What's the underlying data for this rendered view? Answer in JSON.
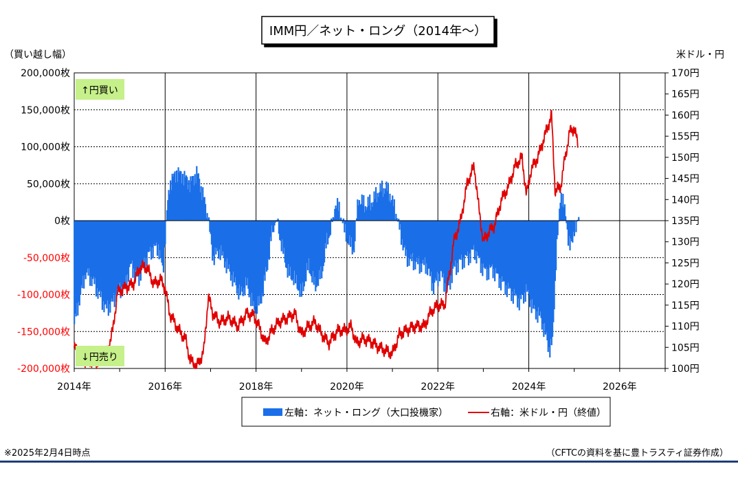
{
  "chart_data": {
    "type": "bar+line",
    "title": "IMM円／ネット・ロング（2014年～）",
    "ylabel_left": "（買い越し幅）",
    "ylabel_right": "米ドル・円",
    "left_axis": {
      "ylim": [
        -200000,
        200000
      ],
      "ticks": [
        200000,
        150000,
        100000,
        50000,
        0,
        -50000,
        -100000,
        -150000,
        -200000
      ],
      "tick_labels": [
        "200,000枚",
        "150,000枚",
        "100,000枚",
        "50,000枚",
        "0枚",
        "-50,000枚",
        "-100,000枚",
        "-150,000枚",
        "-200,000枚"
      ]
    },
    "right_axis": {
      "ylim": [
        100,
        170
      ],
      "tick_labels": [
        "170円",
        "165円",
        "160円",
        "155円",
        "150円",
        "145円",
        "140円",
        "135円",
        "130円",
        "125円",
        "120円",
        "115円",
        "110円",
        "105円",
        "100円"
      ]
    },
    "x_axis": {
      "range": [
        2014,
        2027
      ],
      "tick_labels": [
        "2014年",
        "2016年",
        "2018年",
        "2020年",
        "2022年",
        "2024年",
        "2026年"
      ]
    },
    "grid": true,
    "annotations": {
      "buy": "↑円買い",
      "sell": "↓円売り"
    },
    "legend": {
      "position": "bottom",
      "bar_label": "左軸：ネット・ロング（大口投機家）",
      "line_label": "右軸：米ドル・円（終値）"
    },
    "series": [
      {
        "name": "左軸：ネット・ロング（大口投機家）",
        "type": "bar",
        "color": "#1a6fe8",
        "points": [
          [
            2014.0,
            -140000
          ],
          [
            2014.1,
            -110000
          ],
          [
            2014.25,
            -70000
          ],
          [
            2014.4,
            -80000
          ],
          [
            2014.55,
            -100000
          ],
          [
            2014.7,
            -120000
          ],
          [
            2014.85,
            -110000
          ],
          [
            2014.95,
            -95000
          ],
          [
            2015.1,
            -90000
          ],
          [
            2015.25,
            -60000
          ],
          [
            2015.4,
            -80000
          ],
          [
            2015.55,
            -55000
          ],
          [
            2015.7,
            -40000
          ],
          [
            2015.85,
            -35000
          ],
          [
            2015.95,
            -70000
          ],
          [
            2016.02,
            0
          ],
          [
            2016.1,
            50000
          ],
          [
            2016.25,
            65000
          ],
          [
            2016.4,
            60000
          ],
          [
            2016.55,
            50000
          ],
          [
            2016.7,
            65000
          ],
          [
            2016.85,
            30000
          ],
          [
            2016.95,
            0
          ],
          [
            2017.05,
            -50000
          ],
          [
            2017.2,
            -40000
          ],
          [
            2017.35,
            -60000
          ],
          [
            2017.5,
            -80000
          ],
          [
            2017.65,
            -100000
          ],
          [
            2017.8,
            -85000
          ],
          [
            2017.95,
            -120000
          ],
          [
            2018.1,
            -110000
          ],
          [
            2018.25,
            -60000
          ],
          [
            2018.35,
            -15000
          ],
          [
            2018.45,
            2000
          ],
          [
            2018.55,
            -30000
          ],
          [
            2018.7,
            -70000
          ],
          [
            2018.85,
            -80000
          ],
          [
            2019.0,
            -100000
          ],
          [
            2019.15,
            -60000
          ],
          [
            2019.3,
            -90000
          ],
          [
            2019.45,
            -70000
          ],
          [
            2019.55,
            -30000
          ],
          [
            2019.65,
            -10000
          ],
          [
            2019.75,
            25000
          ],
          [
            2019.85,
            10000
          ],
          [
            2019.95,
            -15000
          ],
          [
            2020.05,
            -30000
          ],
          [
            2020.15,
            -40000
          ],
          [
            2020.25,
            30000
          ],
          [
            2020.4,
            20000
          ],
          [
            2020.55,
            25000
          ],
          [
            2020.7,
            40000
          ],
          [
            2020.85,
            45000
          ],
          [
            2020.95,
            35000
          ],
          [
            2021.05,
            15000
          ],
          [
            2021.15,
            -10000
          ],
          [
            2021.3,
            -50000
          ],
          [
            2021.45,
            -55000
          ],
          [
            2021.6,
            -60000
          ],
          [
            2021.75,
            -60000
          ],
          [
            2021.9,
            -90000
          ],
          [
            2022.05,
            -70000
          ],
          [
            2022.2,
            -95000
          ],
          [
            2022.35,
            -65000
          ],
          [
            2022.5,
            -55000
          ],
          [
            2022.65,
            -50000
          ],
          [
            2022.8,
            -40000
          ],
          [
            2022.95,
            -60000
          ],
          [
            2023.05,
            -70000
          ],
          [
            2023.2,
            -65000
          ],
          [
            2023.35,
            -80000
          ],
          [
            2023.5,
            -90000
          ],
          [
            2023.65,
            -100000
          ],
          [
            2023.8,
            -110000
          ],
          [
            2023.95,
            -95000
          ],
          [
            2024.1,
            -120000
          ],
          [
            2024.25,
            -130000
          ],
          [
            2024.35,
            -150000
          ],
          [
            2024.45,
            -175000
          ],
          [
            2024.52,
            -165000
          ],
          [
            2024.6,
            -50000
          ],
          [
            2024.7,
            40000
          ],
          [
            2024.8,
            10000
          ],
          [
            2024.9,
            -40000
          ],
          [
            2025.0,
            -10000
          ],
          [
            2025.05,
            -15000
          ],
          [
            2025.1,
            15000
          ]
        ]
      },
      {
        "name": "右軸：米ドル・円（終値）",
        "type": "line",
        "color": "#e00000",
        "points": [
          [
            2014.0,
            105
          ],
          [
            2014.2,
            102
          ],
          [
            2014.5,
            101.5
          ],
          [
            2014.7,
            103
          ],
          [
            2014.85,
            109
          ],
          [
            2014.95,
            118
          ],
          [
            2015.1,
            119
          ],
          [
            2015.3,
            120
          ],
          [
            2015.45,
            124
          ],
          [
            2015.6,
            124
          ],
          [
            2015.75,
            120
          ],
          [
            2015.9,
            121
          ],
          [
            2016.0,
            119
          ],
          [
            2016.1,
            113
          ],
          [
            2016.3,
            109
          ],
          [
            2016.45,
            107
          ],
          [
            2016.55,
            102
          ],
          [
            2016.7,
            100.5
          ],
          [
            2016.85,
            104
          ],
          [
            2016.95,
            117
          ],
          [
            2017.05,
            113
          ],
          [
            2017.2,
            111
          ],
          [
            2017.4,
            112
          ],
          [
            2017.6,
            110
          ],
          [
            2017.8,
            113
          ],
          [
            2017.95,
            112.5
          ],
          [
            2018.1,
            109
          ],
          [
            2018.2,
            106
          ],
          [
            2018.35,
            109
          ],
          [
            2018.5,
            111
          ],
          [
            2018.7,
            112
          ],
          [
            2018.85,
            113
          ],
          [
            2019.0,
            108
          ],
          [
            2019.15,
            110
          ],
          [
            2019.3,
            111
          ],
          [
            2019.45,
            108
          ],
          [
            2019.6,
            106
          ],
          [
            2019.8,
            109
          ],
          [
            2019.95,
            109
          ],
          [
            2020.1,
            110
          ],
          [
            2020.2,
            106
          ],
          [
            2020.35,
            107
          ],
          [
            2020.5,
            106.5
          ],
          [
            2020.7,
            105
          ],
          [
            2020.9,
            104
          ],
          [
            2021.0,
            103.5
          ],
          [
            2021.15,
            108
          ],
          [
            2021.3,
            109
          ],
          [
            2021.5,
            110
          ],
          [
            2021.7,
            110
          ],
          [
            2021.85,
            113.5
          ],
          [
            2022.0,
            115
          ],
          [
            2022.15,
            115
          ],
          [
            2022.25,
            122
          ],
          [
            2022.35,
            130
          ],
          [
            2022.5,
            135
          ],
          [
            2022.65,
            144
          ],
          [
            2022.8,
            148
          ],
          [
            2022.9,
            138
          ],
          [
            2023.0,
            130
          ],
          [
            2023.1,
            132
          ],
          [
            2023.25,
            134
          ],
          [
            2023.4,
            140
          ],
          [
            2023.55,
            143
          ],
          [
            2023.7,
            148
          ],
          [
            2023.85,
            150
          ],
          [
            2023.95,
            141
          ],
          [
            2024.05,
            147
          ],
          [
            2024.2,
            150
          ],
          [
            2024.35,
            155
          ],
          [
            2024.5,
            160
          ],
          [
            2024.58,
            142
          ],
          [
            2024.7,
            143
          ],
          [
            2024.8,
            150
          ],
          [
            2024.9,
            156
          ],
          [
            2025.0,
            157
          ],
          [
            2025.08,
            153
          ]
        ]
      }
    ]
  },
  "footnotes": {
    "left": "※2025年2月4日時点",
    "right": "（CFTCの資料を基に豊トラスティ証券作成）"
  }
}
